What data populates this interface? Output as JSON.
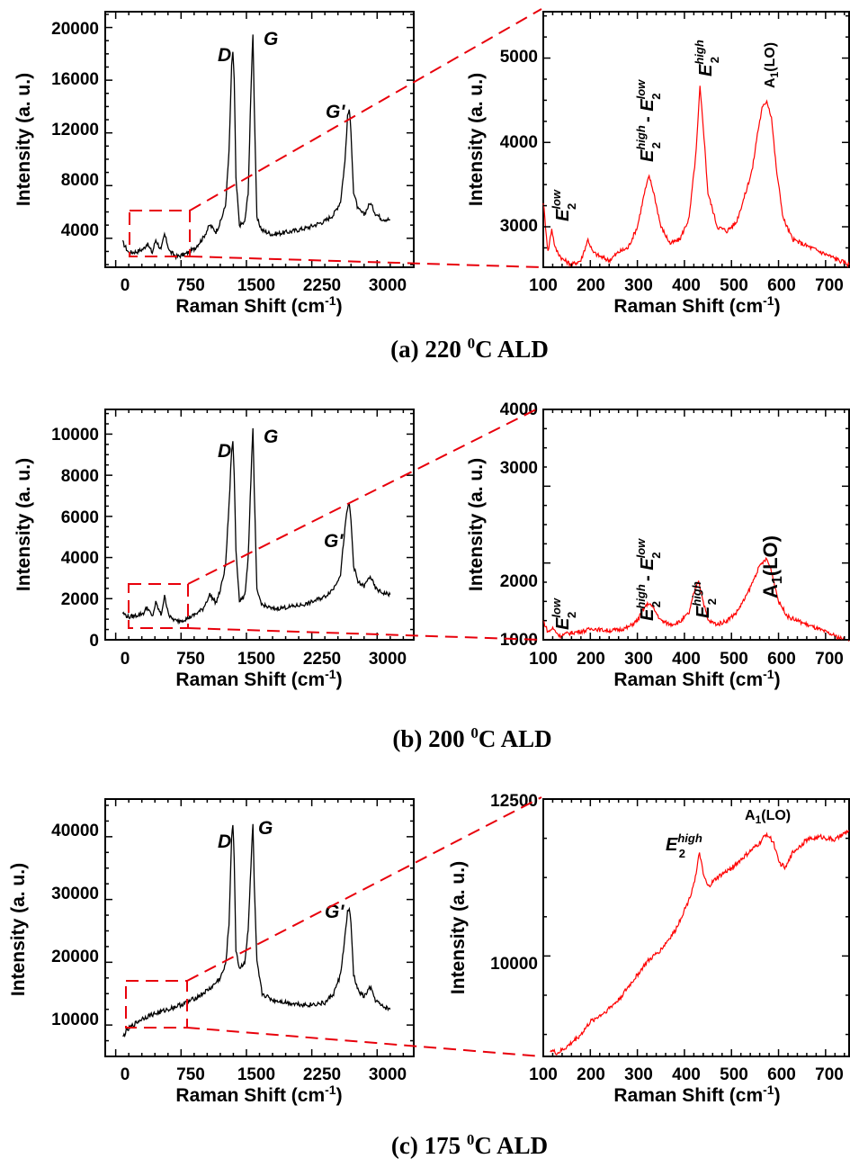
{
  "chart_data": [
    {
      "panel": "a",
      "view": "full",
      "type": "line",
      "xlabel": "Raman Shift (cm-1)",
      "ylabel": "Intensity (a. u.)",
      "xlim": [
        -120,
        3420
      ],
      "ylim": [
        1800,
        21200
      ],
      "xticks": [
        "0",
        "750",
        "1500",
        "2250",
        "3000"
      ],
      "yticks": [
        "4000",
        "8000",
        "12000",
        "16000",
        "20000"
      ],
      "series": [
        {
          "color": "#000000",
          "x": [
            80,
            150,
            250,
            320,
            360,
            420,
            460,
            520,
            560,
            620,
            700,
            800,
            900,
            1000,
            1080,
            1150,
            1200,
            1260,
            1300,
            1330,
            1345,
            1360,
            1380,
            1420,
            1480,
            1520,
            1560,
            1575,
            1590,
            1620,
            1680,
            1800,
            2000,
            2200,
            2400,
            2500,
            2580,
            2630,
            2660,
            2680,
            2700,
            2730,
            2780,
            2850,
            2920,
            2980,
            3050,
            3150
          ],
          "y": [
            3700,
            2900,
            3000,
            3200,
            3600,
            2900,
            3900,
            3100,
            4300,
            3000,
            2600,
            2800,
            3200,
            4000,
            5000,
            4500,
            5200,
            6500,
            10500,
            17000,
            18200,
            16000,
            8500,
            5000,
            5200,
            7500,
            17000,
            19600,
            14000,
            5500,
            4600,
            4300,
            4500,
            4800,
            5300,
            5800,
            6800,
            9800,
            13200,
            13800,
            12000,
            7500,
            6200,
            5800,
            6700,
            5900,
            5500,
            5400
          ]
        }
      ],
      "annotations": [
        "D",
        "G",
        "G'"
      ]
    },
    {
      "panel": "a",
      "view": "zoom",
      "type": "line",
      "xlabel": "Raman Shift (cm-1)",
      "ylabel": "Intensity (a. u.)",
      "xlim": [
        100,
        750
      ],
      "ylim": [
        2520,
        5550
      ],
      "xticks": [
        "100",
        "200",
        "300",
        "400",
        "500",
        "600",
        "700"
      ],
      "yticks": [
        "3000",
        "4000",
        "5000"
      ],
      "series": [
        {
          "color": "#ff0000",
          "x": [
            100,
            110,
            118,
            125,
            140,
            160,
            180,
            195,
            205,
            220,
            240,
            260,
            280,
            300,
            315,
            325,
            335,
            350,
            370,
            390,
            410,
            425,
            433,
            440,
            450,
            470,
            490,
            510,
            530,
            545,
            555,
            565,
            575,
            585,
            595,
            610,
            630,
            650,
            670,
            690,
            710,
            730,
            750
          ],
          "y": [
            3300,
            2700,
            2980,
            2750,
            2620,
            2550,
            2600,
            2850,
            2700,
            2650,
            2600,
            2700,
            2750,
            3000,
            3400,
            3600,
            3400,
            3000,
            2800,
            2850,
            3100,
            3900,
            4650,
            4200,
            3400,
            3000,
            2950,
            3050,
            3400,
            3700,
            4100,
            4400,
            4500,
            4300,
            3700,
            3100,
            2850,
            2800,
            2750,
            2700,
            2650,
            2600,
            2550
          ]
        }
      ],
      "annotations": [
        "E2low",
        "E2high- E2low",
        "E2high",
        "A1(LO)"
      ]
    },
    {
      "panel": "b",
      "view": "full",
      "type": "line",
      "xlabel": "Raman Shift (cm-1)",
      "ylabel": "Intensity (a. u.)",
      "xlim": [
        -120,
        3420
      ],
      "ylim": [
        0,
        11200
      ],
      "xticks": [
        "0",
        "750",
        "1500",
        "2250",
        "3000"
      ],
      "yticks": [
        "0",
        "2000",
        "4000",
        "6000",
        "8000",
        "10000"
      ],
      "series": [
        {
          "color": "#000000",
          "x": [
            80,
            150,
            250,
            320,
            360,
            420,
            460,
            520,
            560,
            620,
            700,
            800,
            900,
            1000,
            1080,
            1150,
            1200,
            1260,
            1300,
            1330,
            1345,
            1360,
            1380,
            1420,
            1480,
            1520,
            1560,
            1575,
            1590,
            1620,
            1680,
            1800,
            2000,
            2200,
            2400,
            2500,
            2580,
            2630,
            2660,
            2680,
            2700,
            2730,
            2780,
            2850,
            2920,
            2980,
            3050,
            3150
          ],
          "y": [
            1300,
            1100,
            1200,
            1300,
            1600,
            1100,
            1800,
            1200,
            2100,
            1100,
            900,
            1000,
            1200,
            1500,
            2200,
            1800,
            2400,
            3600,
            6500,
            9200,
            9600,
            8000,
            4400,
            1900,
            2100,
            4000,
            8800,
            10200,
            7200,
            2400,
            1700,
            1500,
            1600,
            1750,
            2100,
            2500,
            3200,
            5400,
            6400,
            6600,
            5800,
            3600,
            2800,
            2600,
            3100,
            2500,
            2300,
            2200
          ]
        }
      ],
      "annotations": [
        "D",
        "G",
        "G'"
      ]
    },
    {
      "panel": "b",
      "view": "zoom",
      "type": "line",
      "xlabel": "Raman Shift (cm-1)",
      "ylabel": "Intensity (a. u.)",
      "xlim": [
        100,
        750
      ],
      "ylim": [
        1000,
        4000
      ],
      "xticks": [
        "100",
        "200",
        "300",
        "400",
        "500",
        "600",
        "700"
      ],
      "yticks": [
        "1000",
        "2000",
        "3000",
        "4000"
      ],
      "series": [
        {
          "color": "#ff0000",
          "x": [
            100,
            110,
            120,
            135,
            150,
            170,
            190,
            205,
            220,
            240,
            260,
            280,
            300,
            315,
            325,
            335,
            350,
            370,
            390,
            410,
            422,
            430,
            440,
            450,
            470,
            490,
            510,
            530,
            545,
            555,
            565,
            575,
            585,
            600,
            620,
            640,
            660,
            680,
            700,
            720,
            740,
            750
          ],
          "y": [
            1250,
            1100,
            1150,
            1050,
            1080,
            1100,
            1120,
            1150,
            1130,
            1120,
            1130,
            1160,
            1250,
            1420,
            1480,
            1400,
            1250,
            1200,
            1230,
            1350,
            1650,
            1780,
            1500,
            1250,
            1200,
            1250,
            1350,
            1550,
            1750,
            1900,
            2000,
            2050,
            1900,
            1500,
            1300,
            1250,
            1200,
            1150,
            1100,
            1050,
            1000,
            980
          ]
        }
      ],
      "annotations": [
        "E2low",
        "E2high- E2low",
        "E2high",
        "A1(LO)"
      ]
    },
    {
      "panel": "c",
      "view": "full",
      "type": "line",
      "xlabel": "Raman Shift (cm-1)",
      "ylabel": "Intensity (a. u.)",
      "xlim": [
        -120,
        3420
      ],
      "ylim": [
        5000,
        46000
      ],
      "xticks": [
        "0",
        "750",
        "1500",
        "2250",
        "3000"
      ],
      "yticks": [
        "10000",
        "20000",
        "30000",
        "40000"
      ],
      "series": [
        {
          "color": "#000000",
          "x": [
            80,
            120,
            200,
            300,
            400,
            500,
            600,
            700,
            800,
            900,
            1000,
            1100,
            1200,
            1260,
            1300,
            1330,
            1345,
            1360,
            1380,
            1420,
            1480,
            1520,
            1560,
            1575,
            1590,
            1620,
            1680,
            1800,
            2000,
            2200,
            2400,
            2500,
            2580,
            2630,
            2660,
            2680,
            2700,
            2730,
            2780,
            2850,
            2920,
            2980,
            3050,
            3150
          ],
          "y": [
            8000,
            9000,
            10000,
            11000,
            11600,
            12000,
            12500,
            13000,
            13500,
            14200,
            15000,
            16000,
            17500,
            19500,
            26000,
            40000,
            42000,
            36000,
            22000,
            19000,
            20000,
            25000,
            38000,
            42000,
            32000,
            20000,
            15000,
            14000,
            13500,
            13200,
            13500,
            15000,
            18000,
            24000,
            28000,
            28500,
            26000,
            18000,
            15500,
            14500,
            16000,
            14000,
            13000,
            12500
          ]
        }
      ],
      "annotations": [
        "D",
        "G",
        "G'"
      ]
    },
    {
      "panel": "c",
      "view": "zoom",
      "type": "line",
      "xlabel": "Raman Shift (cm-1)",
      "ylabel": "Intensity (a. u.)",
      "xlim": [
        100,
        750
      ],
      "ylim": [
        8400,
        12500
      ],
      "xticks": [
        "100",
        "200",
        "300",
        "400",
        "500",
        "600",
        "700"
      ],
      "yticks": [
        "10000",
        "12500"
      ],
      "series": [
        {
          "color": "#ff0000",
          "x": [
            115,
            130,
            150,
            180,
            200,
            230,
            260,
            290,
            320,
            350,
            380,
            410,
            425,
            432,
            440,
            450,
            470,
            500,
            530,
            560,
            575,
            590,
            600,
            615,
            630,
            660,
            690,
            720,
            750
          ],
          "y": [
            8500,
            8450,
            8550,
            8750,
            8950,
            9100,
            9300,
            9600,
            9900,
            10100,
            10400,
            10900,
            11300,
            11650,
            11300,
            11100,
            11250,
            11400,
            11600,
            11800,
            11950,
            11800,
            11500,
            11400,
            11650,
            11850,
            11900,
            11850,
            12000
          ]
        }
      ],
      "annotations": [
        "E2high",
        "A1(LO)"
      ]
    }
  ],
  "labels": {
    "ylabel": "Intensity (a. u.)",
    "xlabel_main": "Raman Shift (cm",
    "xlabel_sup": "-1",
    "xlabel_tail": ")",
    "peak_d": "D",
    "peak_g": "G",
    "peak_g2": "G'",
    "e2": "E",
    "sub2": "2",
    "low": "low",
    "high": "high",
    "dash": "- ",
    "a1": "A",
    "a1_sub": "1",
    "a1_tail": "(LO)"
  },
  "captions": {
    "a_pre": "(a) 220 ",
    "a_sup": "0",
    "a_post": "C ALD",
    "b_pre": "(b) 200 ",
    "b_sup": "0",
    "b_post": "C ALD",
    "c_pre": "(c) 175 ",
    "c_sup": "0",
    "c_post": "C ALD"
  },
  "colors": {
    "raman": "#000000",
    "zoom": "#ff0000",
    "box": "#e8000b"
  }
}
